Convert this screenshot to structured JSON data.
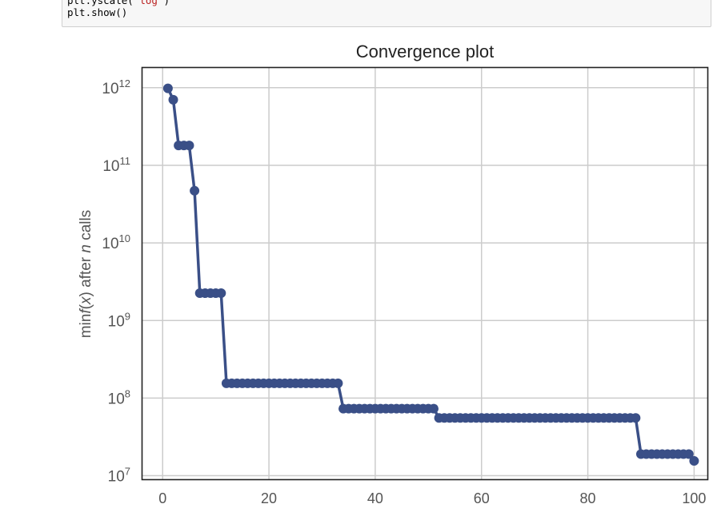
{
  "code_cell": {
    "lines": [
      {
        "prefix": "plt.yscale(",
        "string": "'log'",
        "suffix": ")"
      },
      {
        "prefix": "plt.show()",
        "string": "",
        "suffix": ""
      }
    ]
  },
  "chart_data": {
    "type": "line",
    "title": "Convergence plot",
    "xlabel": "",
    "ylabel": "min f(x) after n calls",
    "yscale": "log",
    "xlim": [
      -3.8,
      102.5
    ],
    "ylim": [
      9000000.0,
      1800000000000.0
    ],
    "grid": true,
    "color": "#3a4f87",
    "xticks": [
      0,
      20,
      40,
      60,
      80,
      100
    ],
    "yticks": [
      {
        "value": 10000000.0,
        "base": "10",
        "exp": "7"
      },
      {
        "value": 100000000.0,
        "base": "10",
        "exp": "8"
      },
      {
        "value": 1000000000.0,
        "base": "10",
        "exp": "9"
      },
      {
        "value": 10000000000.0,
        "base": "10",
        "exp": "10"
      },
      {
        "value": 100000000000.0,
        "base": "10",
        "exp": "11"
      },
      {
        "value": 1000000000000.0,
        "base": "10",
        "exp": "12"
      }
    ],
    "segments": [
      {
        "from": 1,
        "to": 1,
        "y": 980000000000.0
      },
      {
        "from": 2,
        "to": 2,
        "y": 700000000000.0
      },
      {
        "from": 3,
        "to": 5,
        "y": 180000000000.0
      },
      {
        "from": 6,
        "to": 6,
        "y": 47000000000.0
      },
      {
        "from": 7,
        "to": 11,
        "y": 2250000000.0
      },
      {
        "from": 12,
        "to": 33,
        "y": 155000000.0
      },
      {
        "from": 34,
        "to": 51,
        "y": 73000000.0
      },
      {
        "from": 52,
        "to": 89,
        "y": 55500000.0
      },
      {
        "from": 90,
        "to": 99,
        "y": 19000000.0
      },
      {
        "from": 100,
        "to": 100,
        "y": 15500000.0
      }
    ]
  }
}
